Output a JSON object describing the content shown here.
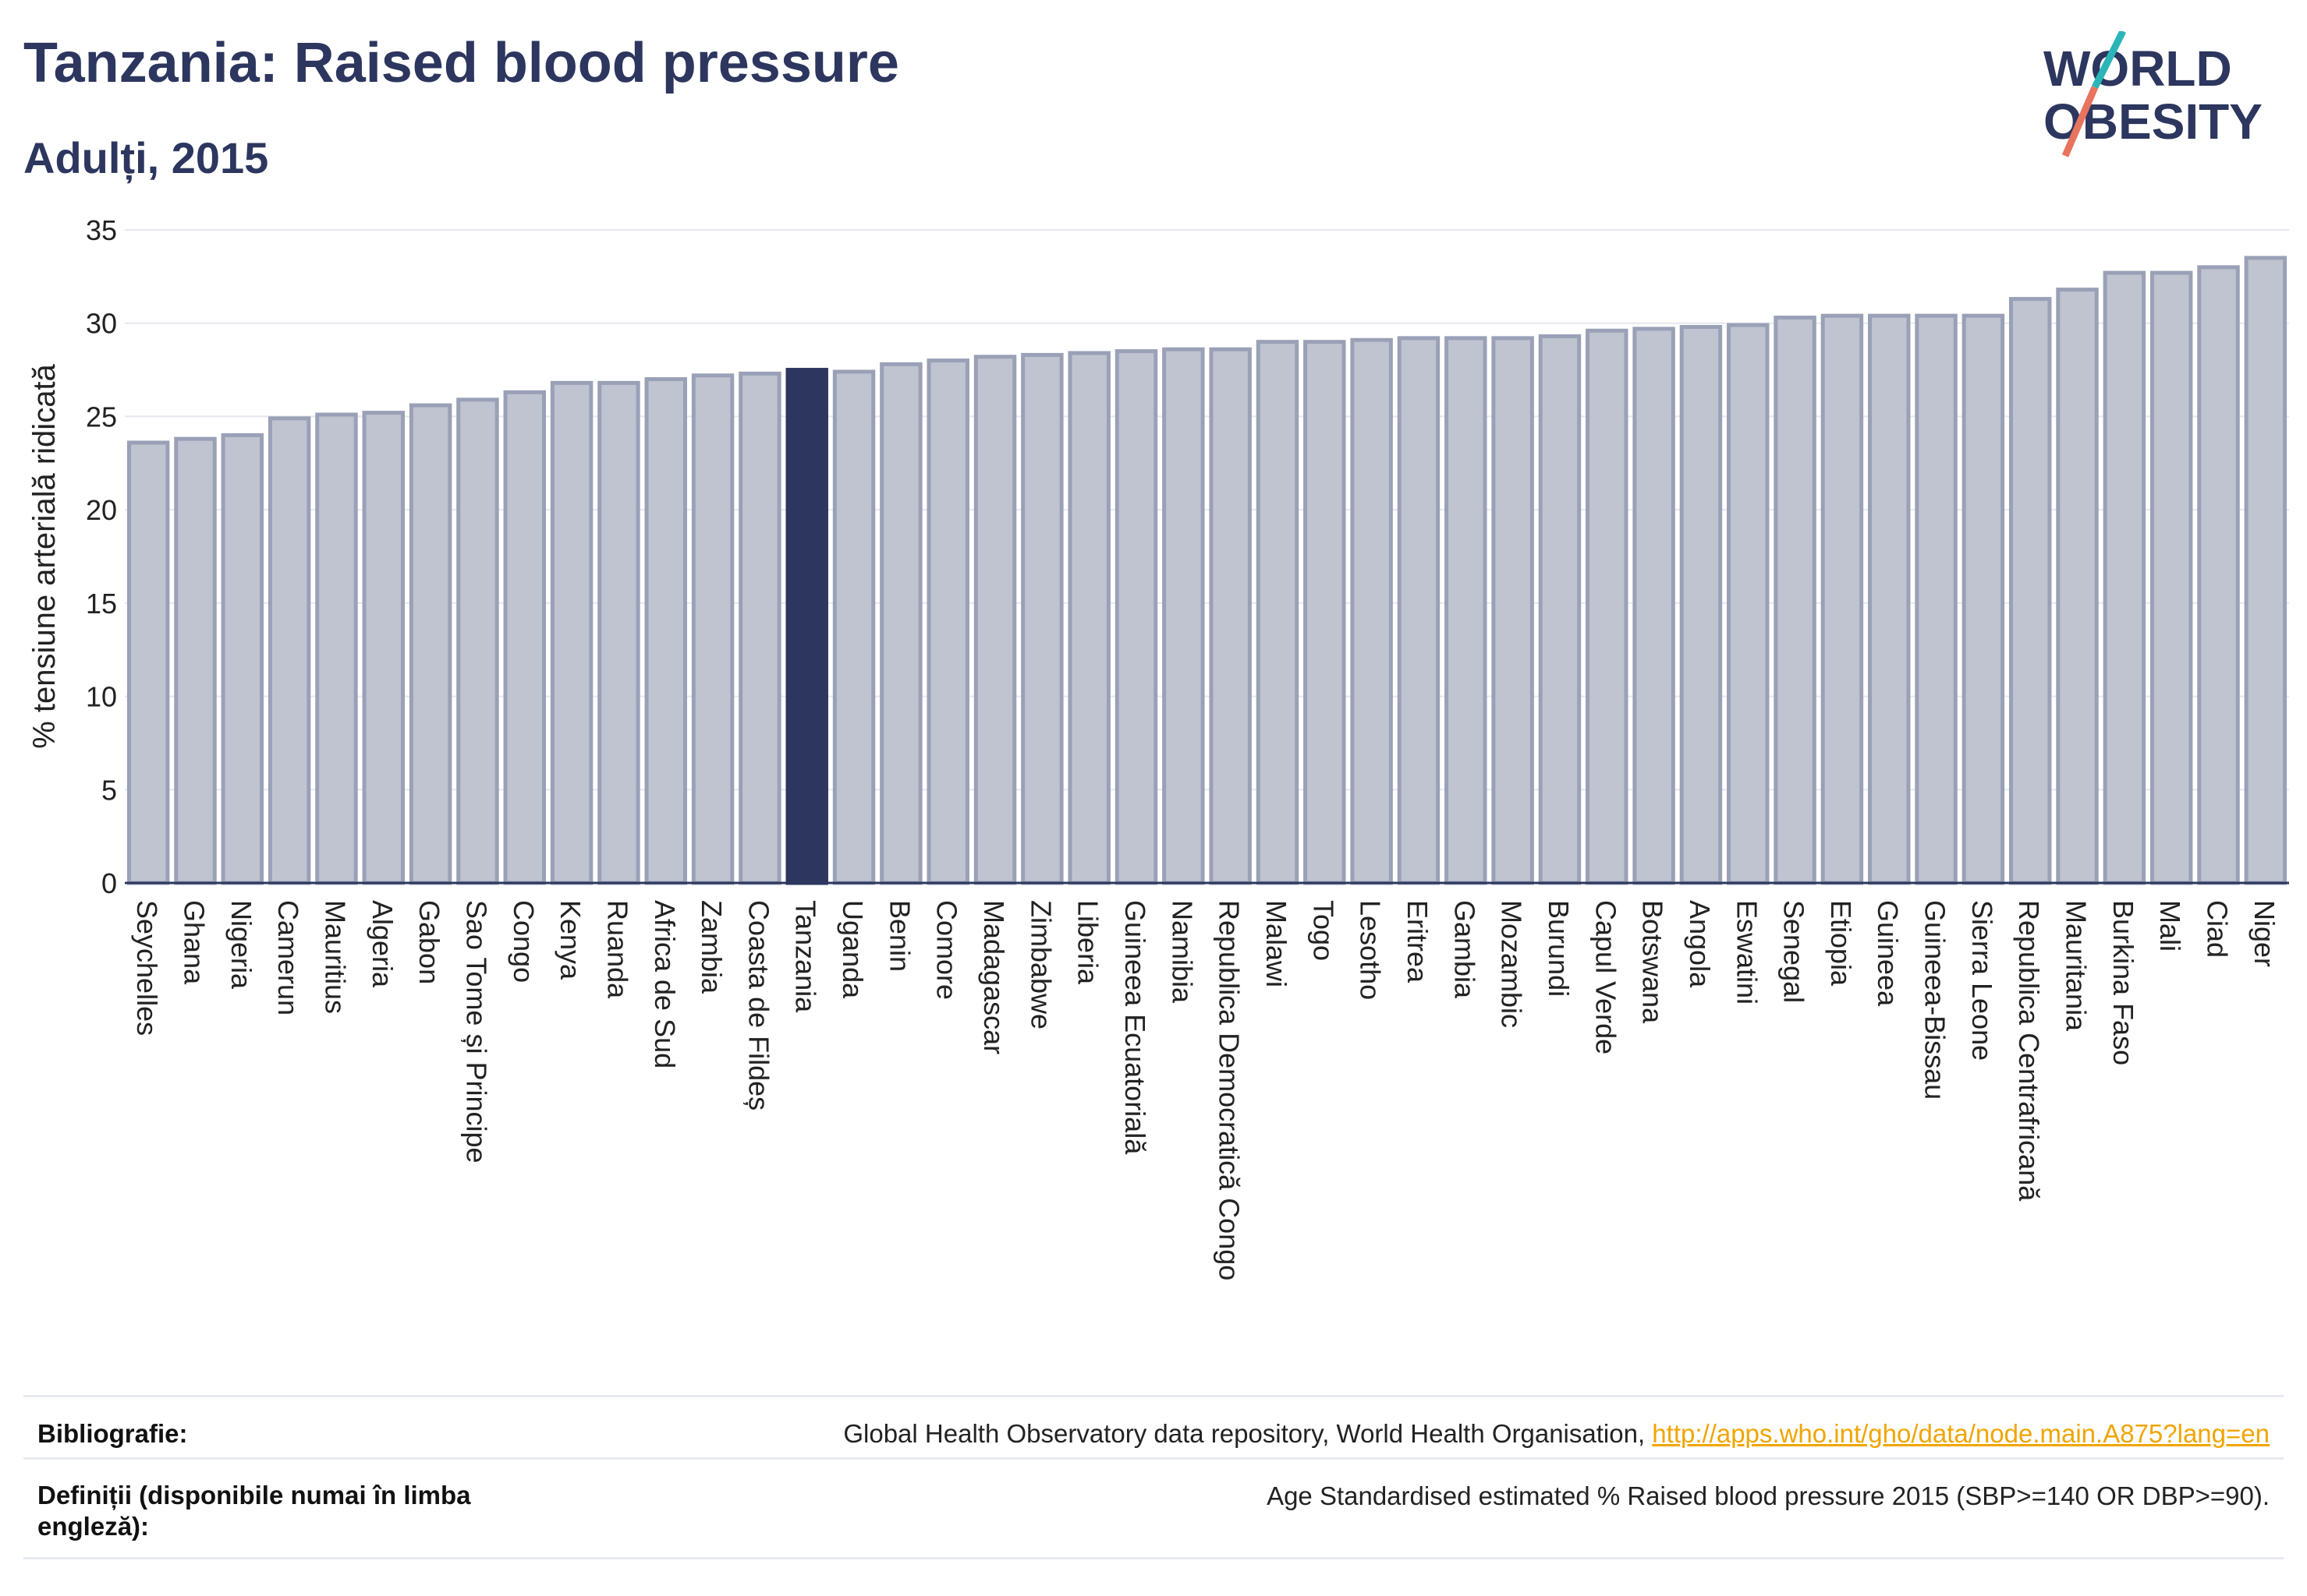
{
  "header": {
    "title": "Tanzania: Raised blood pressure",
    "subtitle": "Adulți, 2015"
  },
  "logo": {
    "line1": "WORLD",
    "line2": "OBESITY",
    "colors": {
      "text": "#2c365e",
      "slash_teal": "#2bb5b8",
      "slash_coral": "#e8735e"
    }
  },
  "chart_data": {
    "type": "bar",
    "ylabel": "% tensiune arterială ridicată",
    "ylim": [
      0,
      35
    ],
    "yticks": [
      0,
      5,
      10,
      15,
      20,
      25,
      30,
      35
    ],
    "grid": true,
    "highlight": "Tanzania",
    "colors": {
      "bar": "#c0c3d0",
      "bar_edge": "#9aa0b6",
      "highlight": "#2c365e",
      "axis": "#2c365e",
      "grid": "#e6e8ef"
    },
    "categories": [
      "Seychelles",
      "Ghana",
      "Nigeria",
      "Camerun",
      "Mauritius",
      "Algeria",
      "Gabon",
      "Sao Tome și Principe",
      "Congo",
      "Kenya",
      "Ruanda",
      "Africa de Sud",
      "Zambia",
      "Coasta de Fildeș",
      "Tanzania",
      "Uganda",
      "Benin",
      "Comore",
      "Madagascar",
      "Zimbabwe",
      "Liberia",
      "Guineea Ecuatorială",
      "Namibia",
      "Republica Democratică Congo",
      "Malawi",
      "Togo",
      "Lesotho",
      "Eritrea",
      "Gambia",
      "Mozambic",
      "Burundi",
      "Capul Verde",
      "Botswana",
      "Angola",
      "Eswatini",
      "Senegal",
      "Etiopia",
      "Guineea",
      "Guineea-Bissau",
      "Sierra Leone",
      "Republica Centrafricană",
      "Mauritania",
      "Burkina Faso",
      "Mali",
      "Ciad",
      "Niger"
    ],
    "values": [
      23.6,
      23.8,
      24.0,
      24.9,
      25.1,
      25.2,
      25.6,
      25.9,
      26.3,
      26.8,
      26.8,
      27.0,
      27.2,
      27.3,
      27.5,
      27.4,
      27.8,
      28.0,
      28.2,
      28.3,
      28.4,
      28.5,
      28.6,
      28.6,
      29.0,
      29.0,
      29.1,
      29.2,
      29.2,
      29.2,
      29.3,
      29.6,
      29.7,
      29.8,
      29.9,
      30.3,
      30.4,
      30.4,
      30.4,
      30.4,
      31.3,
      31.8,
      32.7,
      32.7,
      33.0,
      33.5
    ]
  },
  "footer": {
    "bibliography_label": "Bibliografie:",
    "bibliography_text": "Global Health Observatory data repository, World Health Organisation, ",
    "bibliography_link": "http://apps.who.int/gho/data/node.main.A875?lang=en",
    "definitions_label_1": "Definiții (disponibile numai în limba",
    "definitions_label_2": "engleză):",
    "definitions_text": "Age Standardised estimated % Raised blood pressure 2015 (SBP>=140 OR DBP>=90)."
  }
}
